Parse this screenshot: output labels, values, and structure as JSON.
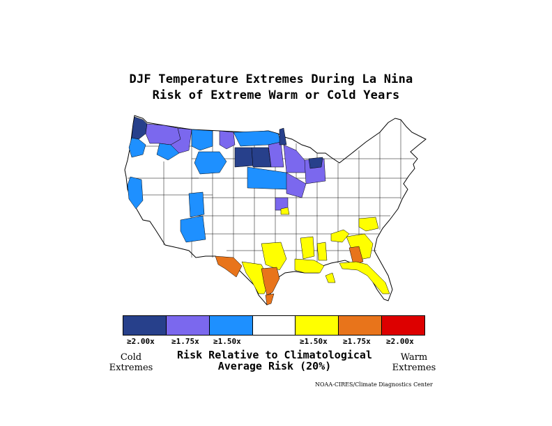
{
  "title": {
    "line1": "DJF Temperature Extremes During La Nina",
    "line2": "Risk of Extreme Warm or Cold Years"
  },
  "legend": {
    "colors": [
      "#27408b",
      "#7b68ee",
      "#1e90ff",
      "#ffffff",
      "#ffff00",
      "#e8741b",
      "#dd0000"
    ],
    "tick_labels": [
      "≥2.00x",
      "≥1.75x",
      "≥1.50x",
      "",
      "≥1.50x",
      "≥1.75x",
      "≥2.00x"
    ],
    "cold_label": [
      "Cold",
      "Extremes"
    ],
    "warm_label": [
      "Warm",
      "Extremes"
    ],
    "axis_title_line1": "Risk Relative to Climatological",
    "axis_title_line2": "Average Risk (20%)"
  },
  "credit": "NOAA-CIRES/Climate Diagnostics Center",
  "map_colors": {
    "outline": "#000000",
    "cold_2": "#27408b",
    "cold_175": "#7b68ee",
    "cold_15": "#1e90ff",
    "warm_15": "#ffff00",
    "warm_175": "#e8741b"
  }
}
